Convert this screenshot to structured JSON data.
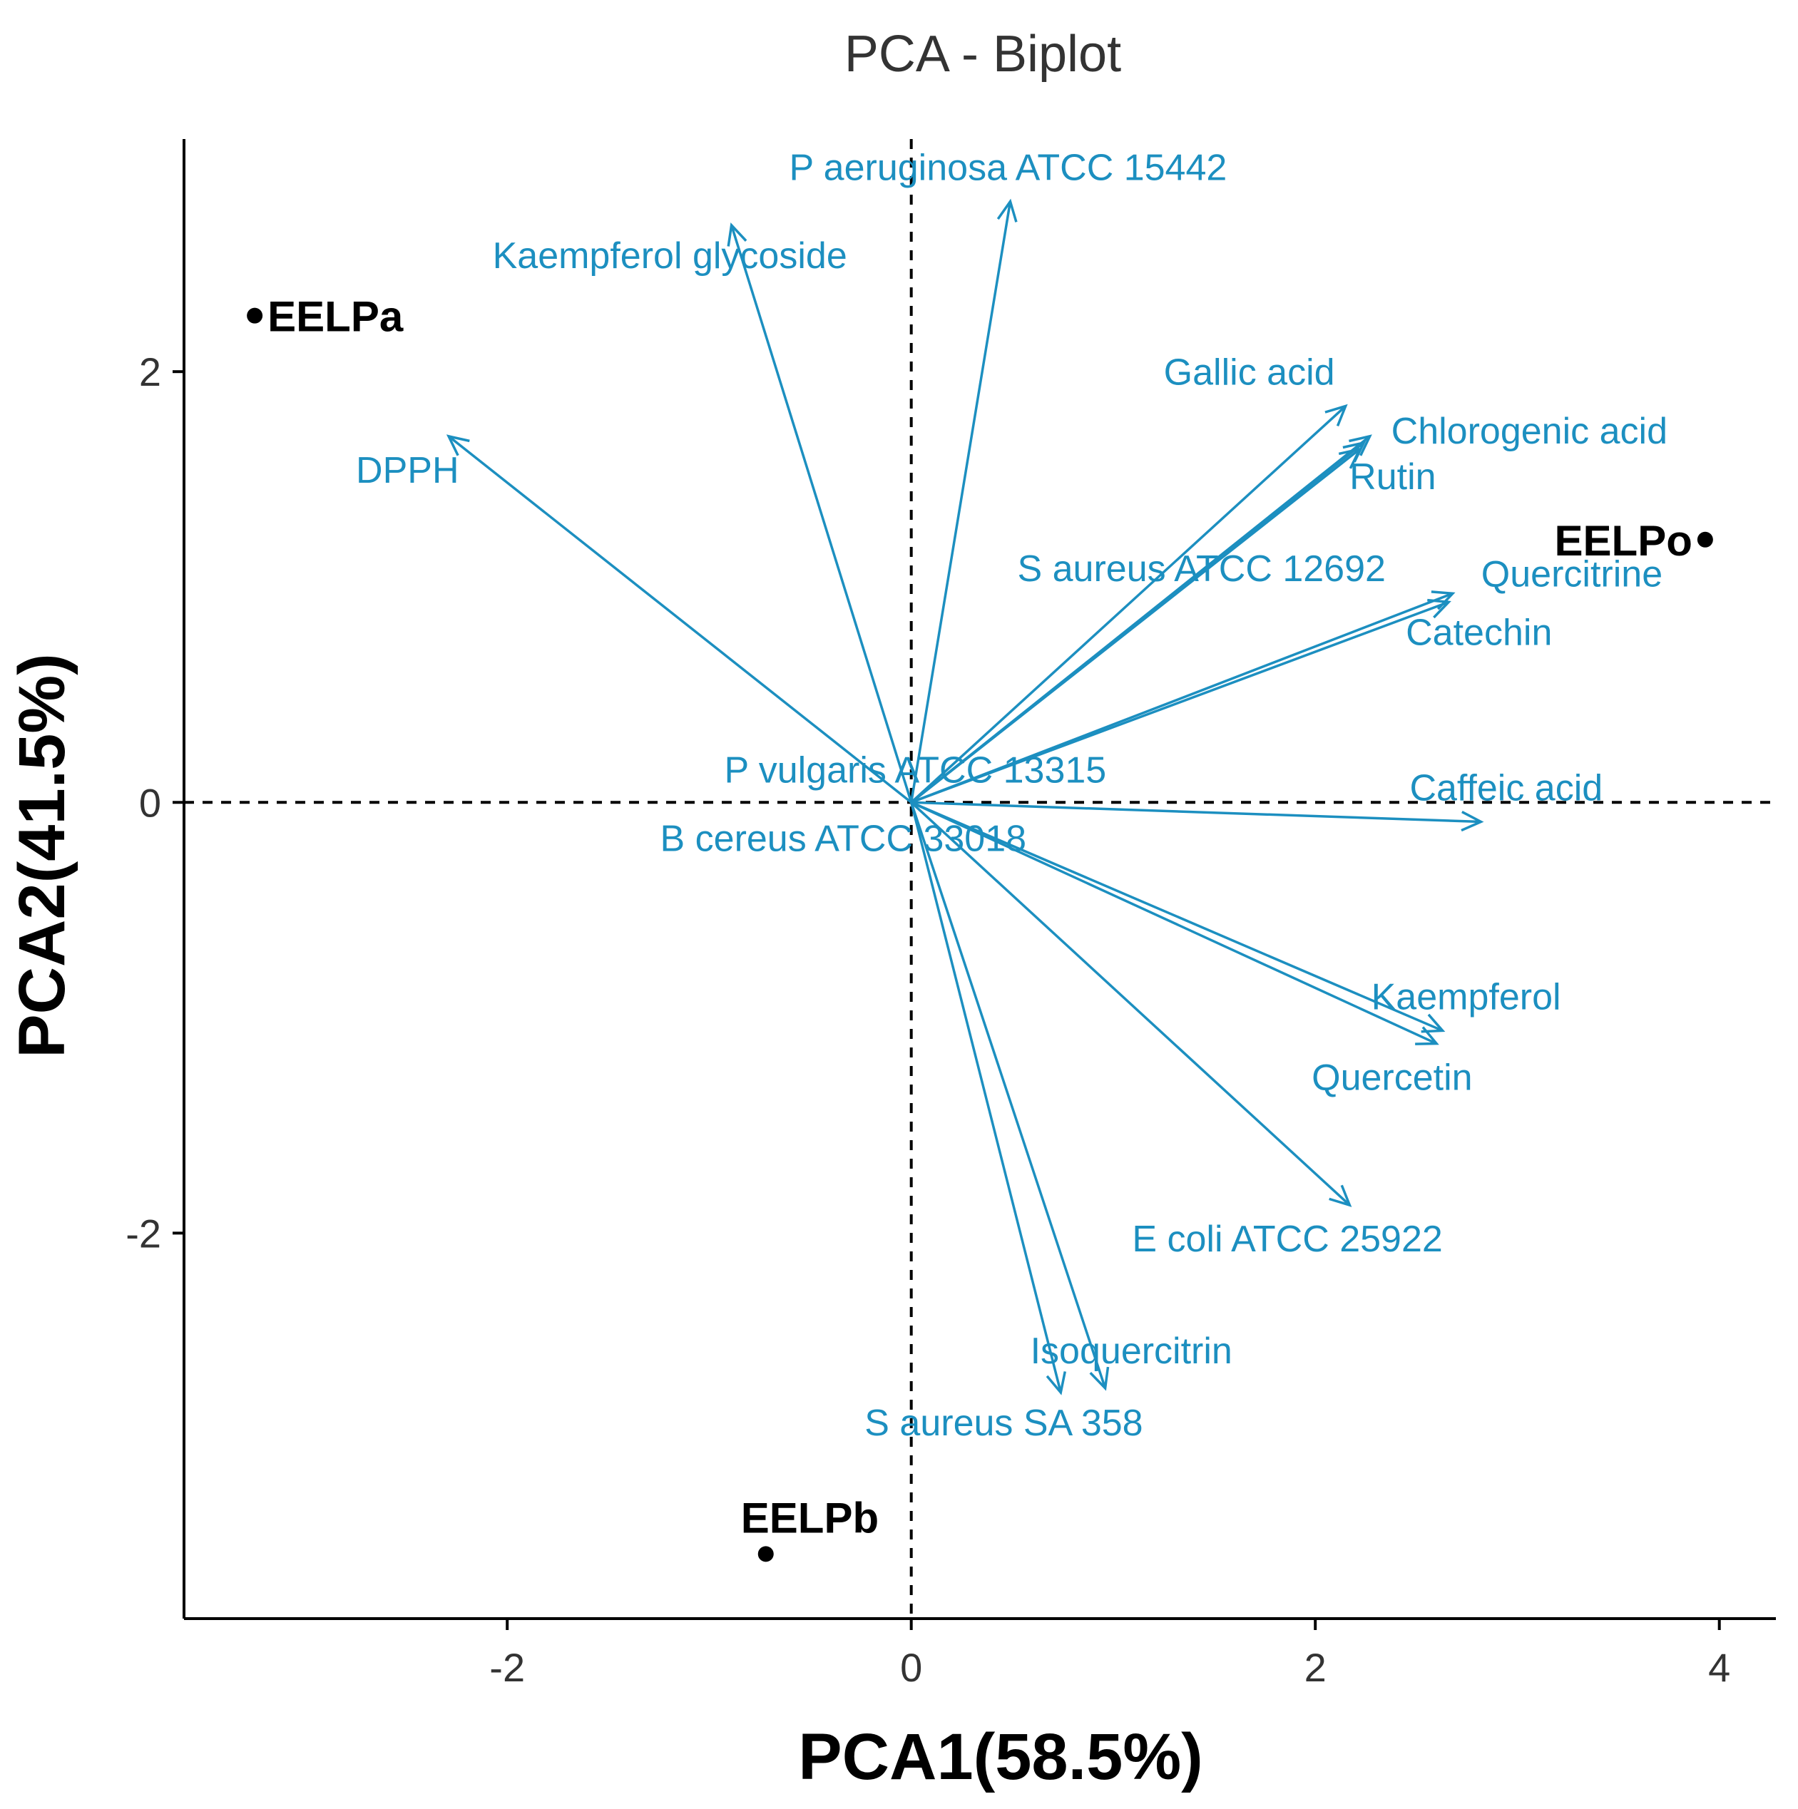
{
  "chart_data": {
    "type": "scatter",
    "subtype": "pca-biplot",
    "title": "PCA - Biplot",
    "xlabel": "PCA1(58.5%)",
    "ylabel": "PCA2(41.5%)",
    "xlim": [
      -3.6,
      4.28
    ],
    "ylim": [
      -3.79,
      3.08
    ],
    "xticks": [
      -2,
      0,
      2,
      4
    ],
    "xtick_labels": [
      "-2",
      "0",
      "2",
      "4"
    ],
    "yticks": [
      -2,
      0,
      2
    ],
    "ytick_labels": [
      "-2",
      "0",
      "2"
    ],
    "grid": false,
    "reference_lines": [
      "x=0",
      "y=0"
    ],
    "colors": {
      "variables": "#1c8fc0",
      "individuals": "#000000",
      "axis": "#000000"
    },
    "individuals": [
      {
        "name": "EELPa",
        "x": -3.25,
        "y": 2.26
      },
      {
        "name": "EELPo",
        "x": 3.93,
        "y": 1.22
      },
      {
        "name": "EELPb",
        "x": -0.72,
        "y": -3.49
      }
    ],
    "variables": [
      {
        "name": "P aeruginosa ATCC 15442",
        "x": 0.49,
        "y": 2.79
      },
      {
        "name": "Kaempferol glycoside",
        "x": -0.89,
        "y": 2.68
      },
      {
        "name": "Gallic acid",
        "x": 2.15,
        "y": 1.84
      },
      {
        "name": "Chlorogenic acid",
        "x": 2.27,
        "y": 1.7
      },
      {
        "name": "Rutin",
        "x": 2.24,
        "y": 1.67
      },
      {
        "name": "DPPH",
        "x": -2.29,
        "y": 1.7
      },
      {
        "name": "S aureus ATCC 12692",
        "x": 2.22,
        "y": 1.64
      },
      {
        "name": "Quercitrine",
        "x": 2.68,
        "y": 0.97
      },
      {
        "name": "Catechin",
        "x": 2.66,
        "y": 0.93
      },
      {
        "name": "P vulgaris ATCC 13315",
        "x": 0.01,
        "y": 0.01
      },
      {
        "name": "B cereus ATCC 33018",
        "x": 0.01,
        "y": -0.01
      },
      {
        "name": "Caffeic acid",
        "x": 2.82,
        "y": -0.09
      },
      {
        "name": "Kaempferol",
        "x": 2.63,
        "y": -1.06
      },
      {
        "name": "Quercetin",
        "x": 2.6,
        "y": -1.12
      },
      {
        "name": "E coli ATCC 25922",
        "x": 2.17,
        "y": -1.87
      },
      {
        "name": "Isoquercitrin",
        "x": 0.96,
        "y": -2.72
      },
      {
        "name": "S aureus SA 358",
        "x": 0.74,
        "y": -2.74
      }
    ]
  }
}
